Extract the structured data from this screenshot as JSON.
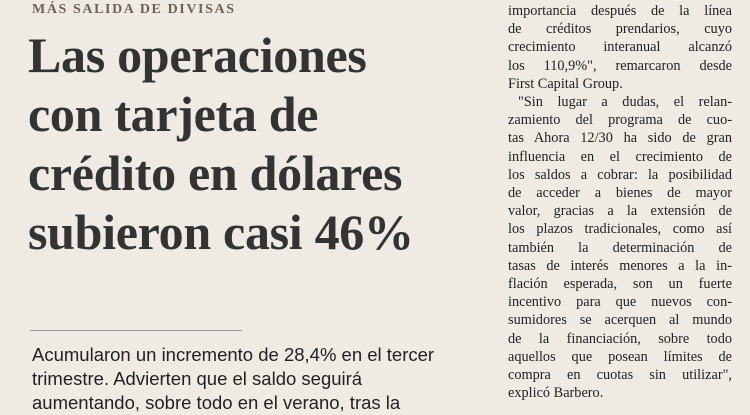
{
  "kicker": "MÁS SALIDA DE DIVISAS",
  "headline": {
    "lines": [
      "Las operaciones",
      "con tarjeta de",
      "crédito en dólares",
      "subieron casi 46%"
    ]
  },
  "deck": {
    "lines": [
      "Acumularon un incremento de 28,4% en el tercer",
      "trimestre. Advierten que el saldo seguirá",
      "aumentando, sobre todo en el verano, tras la"
    ]
  },
  "right_column": {
    "paragraphs": [
      [
        "importancia después de la línea",
        "de créditos prendarios, cuyo",
        "crecimiento interanual alcanzó",
        "los 110,9%\", remarcaron desde",
        "First Capital Group."
      ],
      [
        "\"Sin lugar a dudas, el relan-",
        "zamiento del programa de cuo-",
        "tas Ahora 12/30 ha sido de gran",
        "influencia en el crecimiento de",
        "los saldos a cobrar: la posibilidad",
        "de acceder a bienes de mayor",
        "valor, gracias a la extensión de",
        "los plazos tradicionales, como así",
        "también la determinación de",
        "tasas de interés menores a la in-",
        "flación esperada, son un fuerte",
        "incentivo para que nuevos con-",
        "sumidores se acerquen al mundo",
        "de la financiación, sobre todo",
        "aquellos que posean límites de",
        "compra en cuotas sin utilizar\",",
        "explicó Barbero."
      ]
    ]
  }
}
